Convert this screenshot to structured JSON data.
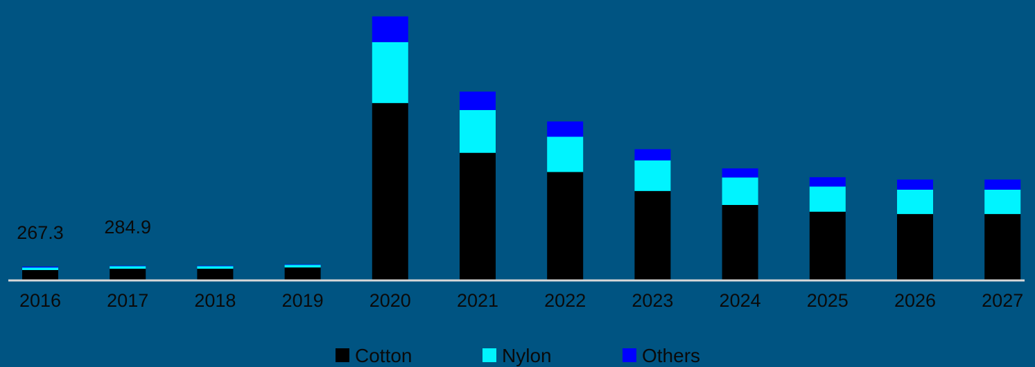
{
  "chart_data": {
    "type": "bar",
    "stacked": true,
    "categories": [
      "2016",
      "2017",
      "2018",
      "2019",
      "2020",
      "2021",
      "2022",
      "2023",
      "2024",
      "2025",
      "2026",
      "2027"
    ],
    "series": [
      {
        "name": "Cotton",
        "color": "#000000",
        "values": [
          200,
          225,
          225,
          250,
          3420,
          2460,
          2090,
          1725,
          1455,
          1325,
          1280,
          1280
        ]
      },
      {
        "name": "Nylon",
        "color": "#00f4ff",
        "values": [
          50,
          50,
          50,
          50,
          1175,
          825,
          680,
          590,
          530,
          485,
          470,
          470
        ]
      },
      {
        "name": "Others",
        "color": "#0000ff",
        "values": [
          17.3,
          9.9,
          10,
          10,
          495,
          355,
          295,
          215,
          175,
          180,
          195,
          195
        ]
      }
    ],
    "data_labels": [
      {
        "category": "2016",
        "text": "267.3"
      },
      {
        "category": "2017",
        "text": "284.9"
      }
    ],
    "ylim": [
      0,
      5300
    ],
    "grid": false,
    "legend_position": "bottom",
    "background": "#005482",
    "axis_color": "#d8d8d8"
  }
}
